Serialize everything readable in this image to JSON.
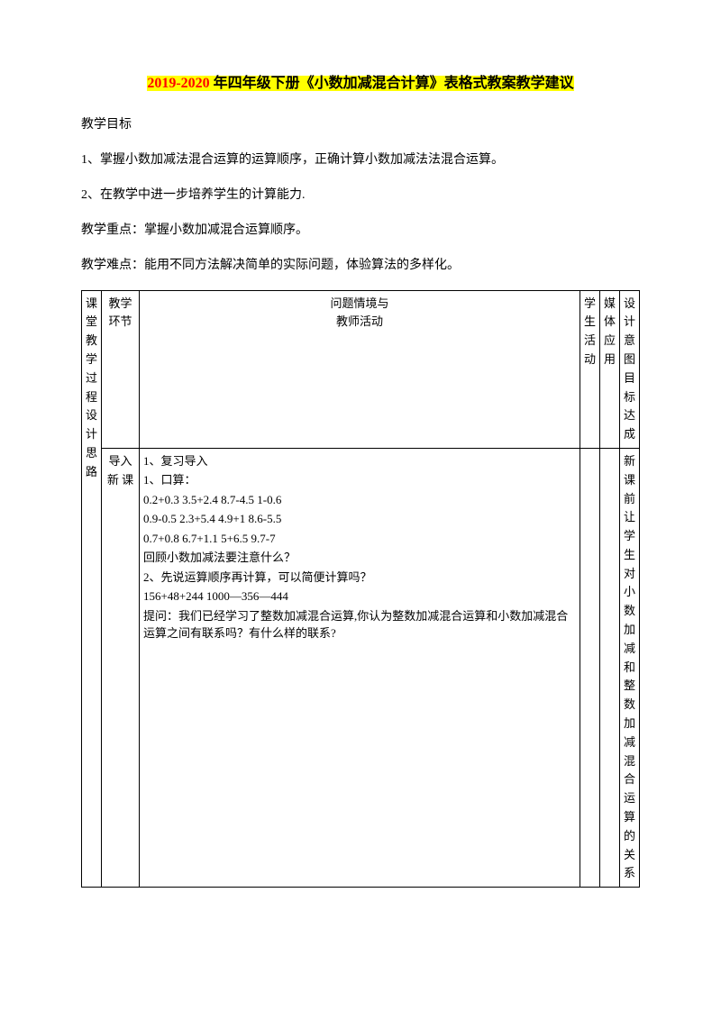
{
  "title": {
    "year_range": "2019-2020",
    "rest": " 年四年级下册《小数加减混合计算》表格式教案教学建议"
  },
  "intro": {
    "goal_label": "教学目标",
    "goal_1": "1、掌握小数加减法混合运算的运算顺序，正确计算小数加减法法混合运算。",
    "goal_2": "2、在教学中进一步培养学生的计算能力.",
    "key_point": "教学重点：掌握小数加减混合运算顺序。",
    "difficult_point": "教学难点：能用不同方法解决简单的实际问题，体验算法的多样化。"
  },
  "table": {
    "sidecol_label": "课堂教学过程设计思路",
    "header": {
      "stage": "教学\n环节",
      "main_line1": "问题情境与",
      "main_line2": "教师活动",
      "student": "学生活动",
      "media": "媒体应用",
      "design": "设计意图目标达成"
    },
    "row1": {
      "stage": "导入新 课",
      "main": {
        "l1": "1、复习导入",
        "l2": "1、口算：",
        "l3": "0.2+0.3   3.5+2.4      8.7-4.5      1-0.6",
        "l4": "0.9-0.5   2.3+5.4     4.9+1       8.6-5.5",
        "l5": "0.7+0.8   6.7+1.1     5+6.5       9.7-7",
        "l6": "回顾小数加减法要注意什么？",
        "l7": "2、先说运算顺序再计算，可以简便计算吗？",
        "l8": "156+48+244      1000—356—444",
        "l9": "提问：我们已经学习了整数加减混合运算,你认为整数加减混合运算和小数加减混合运算之间有联系吗？有什么样的联系?"
      },
      "design": "新课前让学生对小数加减和整数加减混合运算的关系"
    }
  }
}
